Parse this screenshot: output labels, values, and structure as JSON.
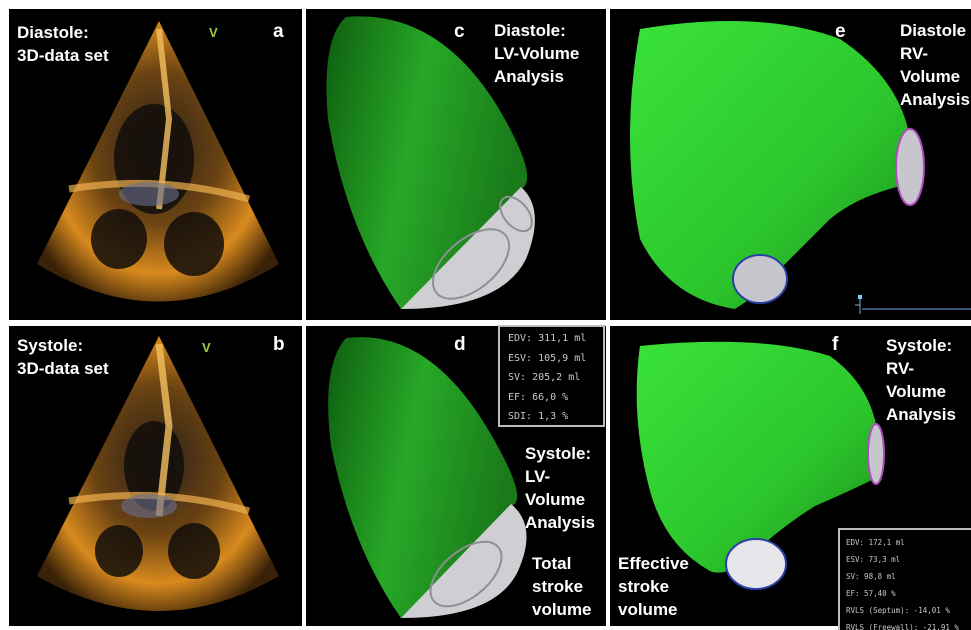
{
  "panels": {
    "a": {
      "letter": "a",
      "caption": "Diastole:\n3D-data set",
      "marker": "V"
    },
    "b": {
      "letter": "b",
      "caption": "Systole:\n3D-data set",
      "marker": "V"
    },
    "c": {
      "letter": "c",
      "caption": "Diastole:\nLV-Volume\nAnalysis"
    },
    "d": {
      "letter": "d",
      "caption": "Systole:\nLV-\nVolume\nAnalysis",
      "note": "Total\nstroke\nvolume"
    },
    "e": {
      "letter": "e",
      "caption": "Diastole\nRV-\nVolume\nAnalysis"
    },
    "f": {
      "letter": "f",
      "caption": "Systole:\nRV-\nVolume\nAnalysis",
      "note": "Effective\nstroke\nvolume"
    }
  },
  "lv_stats": [
    "EDV: 311,1 ml",
    "ESV: 105,9 ml",
    "SV: 205,2 ml",
    "EF: 66,0 %",
    "SDI: 1,3 %"
  ],
  "rv_stats": [
    "EDV: 172,1 ml",
    "ESV: 73,3 ml",
    "SV: 98,8 ml",
    "EF: 57,40 %",
    "RVLS (Septum): -14,01 %",
    "RVLS (Freewall): -21,91 %"
  ],
  "colors": {
    "ventricle_green": "#1f9a1f",
    "rv_green": "#3ee63e",
    "valve_gray": "#c8c8cc",
    "echo_orange": "#e89a2a"
  }
}
